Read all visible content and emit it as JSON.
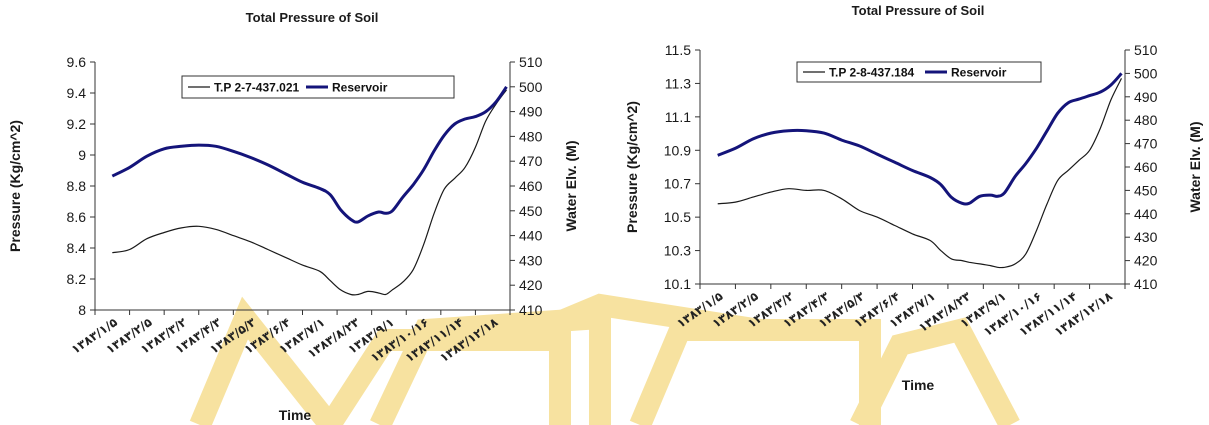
{
  "colors": {
    "watermark": "#f7e2a0",
    "pressure_series": "#1a1a1a",
    "reservoir_series": "#14147a"
  },
  "chart_data": [
    {
      "type": "line",
      "title": "Total Pressure of Soil",
      "xlabel": "Time",
      "ylabel": "Pressure (Kg/cm^2)",
      "y2label": "Water Elv. (M)",
      "ylim": [
        8,
        9.6
      ],
      "yticks": [
        "8",
        "8.2",
        "8.4",
        "8.6",
        "8.8",
        "9",
        "9.2",
        "9.4",
        "9.6"
      ],
      "y2lim": [
        410,
        510
      ],
      "y2ticks": [
        "410",
        "420",
        "430",
        "440",
        "450",
        "460",
        "470",
        "480",
        "490",
        "500",
        "510"
      ],
      "categories": [
        "۱۳۸۳/۱/۵",
        "۱۳۸۳/۲/۵",
        "۱۳۸۳/۳/۲",
        "۱۳۸۳/۴/۳",
        "۱۳۸۳/۵/۳",
        "۱۳۸۳/۶/۴",
        "۱۳۸۳/۷/۱",
        "۱۳۸۳/۸/۲۳",
        "۱۳۸۳/۹/۱",
        "۱۳۸۳/۱۰/۱۶",
        "۱۳۸۳/۱۱/۱۴",
        "۱۳۸۳/۱۲/۱۸"
      ],
      "legend_position": "top",
      "series": [
        {
          "name": "T.P 2-7-437.021",
          "axis": "left",
          "x": [
            0,
            0.5,
            1,
            1.5,
            2,
            2.5,
            3,
            3.5,
            4,
            4.5,
            5,
            5.5,
            6,
            6.3,
            6.6,
            6.9,
            7.1,
            7.4,
            7.7,
            7.9,
            8.1,
            8.4,
            8.7,
            9,
            9.3,
            9.6,
            9.9,
            10.2,
            10.5,
            10.8,
            11.1,
            11.4
          ],
          "y": [
            8.37,
            8.39,
            8.46,
            8.5,
            8.53,
            8.54,
            8.52,
            8.48,
            8.44,
            8.39,
            8.34,
            8.29,
            8.25,
            8.19,
            8.13,
            8.1,
            8.1,
            8.12,
            8.11,
            8.1,
            8.13,
            8.18,
            8.26,
            8.42,
            8.62,
            8.78,
            8.85,
            8.92,
            9.05,
            9.22,
            9.33,
            9.42
          ]
        },
        {
          "name": "Reservoir",
          "axis": "right",
          "x": [
            0,
            0.5,
            1,
            1.5,
            2,
            2.5,
            3,
            3.5,
            4,
            4.5,
            5,
            5.5,
            6,
            6.3,
            6.6,
            6.9,
            7.1,
            7.4,
            7.7,
            7.9,
            8.1,
            8.4,
            8.7,
            9,
            9.3,
            9.6,
            9.9,
            10.2,
            10.5,
            10.8,
            11.1,
            11.4
          ],
          "y": [
            464,
            467.5,
            472,
            475,
            476,
            476.5,
            476,
            474,
            471.5,
            468.5,
            465,
            461.5,
            459,
            456.5,
            450.5,
            446.5,
            445.5,
            448,
            449.5,
            449,
            450,
            455.5,
            460.5,
            466.5,
            474,
            480.5,
            485,
            487,
            488,
            490,
            494,
            500
          ]
        }
      ]
    },
    {
      "type": "line",
      "title": "Total Pressure of Soil",
      "xlabel": "Time",
      "ylabel": "Pressure (Kg/cm^2)",
      "y2label": "Water Elv. (M)",
      "ylim": [
        10.1,
        11.5
      ],
      "yticks": [
        "10.1",
        "10.3",
        "10.5",
        "10.7",
        "10.9",
        "11.1",
        "11.3",
        "11.5"
      ],
      "y2lim": [
        410,
        510
      ],
      "y2ticks": [
        "410",
        "420",
        "430",
        "440",
        "450",
        "460",
        "470",
        "480",
        "490",
        "500",
        "510"
      ],
      "categories": [
        "۱۳۸۳/۱/۵",
        "۱۳۸۳/۲/۵",
        "۱۳۸۳/۳/۲",
        "۱۳۸۳/۴/۳",
        "۱۳۸۳/۵/۳",
        "۱۳۸۳/۶/۴",
        "۱۳۸۳/۷/۱",
        "۱۳۸۳/۸/۲۳",
        "۱۳۸۳/۹/۱",
        "۱۳۸۳/۱۰/۱۶",
        "۱۳۸۳/۱۱/۱۴",
        "۱۳۸۳/۱۲/۱۸"
      ],
      "legend_position": "top",
      "series": [
        {
          "name": "T.P 2-8-437.184",
          "axis": "left",
          "x": [
            0,
            0.5,
            1,
            1.5,
            2,
            2.5,
            3,
            3.5,
            4,
            4.5,
            5,
            5.5,
            6,
            6.3,
            6.6,
            6.9,
            7.1,
            7.4,
            7.7,
            7.9,
            8.1,
            8.4,
            8.7,
            9,
            9.3,
            9.6,
            9.9,
            10.2,
            10.5,
            10.8,
            11.1,
            11.4
          ],
          "y": [
            10.58,
            10.59,
            10.62,
            10.65,
            10.67,
            10.66,
            10.66,
            10.61,
            10.54,
            10.5,
            10.45,
            10.4,
            10.36,
            10.3,
            10.25,
            10.24,
            10.23,
            10.22,
            10.21,
            10.2,
            10.2,
            10.22,
            10.28,
            10.42,
            10.58,
            10.72,
            10.78,
            10.84,
            10.9,
            11.03,
            11.2,
            11.33
          ]
        },
        {
          "name": "Reservoir",
          "axis": "right",
          "x": [
            0,
            0.5,
            1,
            1.5,
            2,
            2.5,
            3,
            3.5,
            4,
            4.5,
            5,
            5.5,
            6,
            6.3,
            6.6,
            6.9,
            7.1,
            7.4,
            7.7,
            7.9,
            8.1,
            8.4,
            8.7,
            9,
            9.3,
            9.6,
            9.9,
            10.2,
            10.5,
            10.8,
            11.1,
            11.4
          ],
          "y": [
            465,
            468,
            472,
            474.5,
            475.5,
            475.5,
            474.5,
            471.5,
            469,
            465.5,
            462,
            458.5,
            455.5,
            452.5,
            447,
            444.5,
            444.5,
            447.5,
            448,
            447.5,
            449,
            456,
            461.5,
            468,
            475.5,
            483,
            487.5,
            489,
            490.5,
            492,
            495,
            500
          ]
        }
      ]
    }
  ]
}
